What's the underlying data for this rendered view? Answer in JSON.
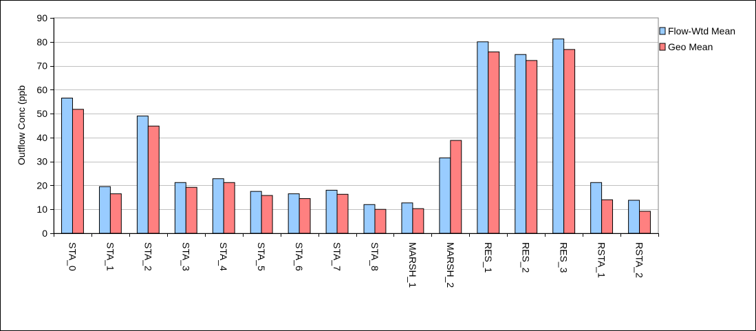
{
  "chart_data": {
    "type": "bar",
    "categories": [
      "STA_0",
      "STA_1",
      "STA_2",
      "STA_3",
      "STA_4",
      "STA_5",
      "STA_6",
      "STA_7",
      "STA_8",
      "MARSH_1",
      "MARSH_2",
      "RES_1",
      "RES_2",
      "RES_3",
      "RSTA_1",
      "RSTA_2"
    ],
    "series": [
      {
        "name": "Flow-Wtd Mean",
        "color": "#99ccff",
        "values": [
          56.5,
          19.5,
          49,
          21.2,
          22.8,
          17.5,
          16.5,
          18,
          12,
          12.7,
          31.5,
          80,
          74.7,
          81.2,
          21.2,
          13.8
        ]
      },
      {
        "name": "Geo Mean",
        "color": "#ff8080",
        "values": [
          51.8,
          16.5,
          44.8,
          19.2,
          21.2,
          15.8,
          14.5,
          16.3,
          10,
          10.3,
          38.8,
          75.8,
          72.2,
          76.8,
          14,
          9.2
        ]
      }
    ],
    "ylabel": "Outflow Conc (ppb",
    "ylim": [
      0,
      90
    ],
    "yticks": [
      0,
      10,
      20,
      30,
      40,
      50,
      60,
      70,
      80,
      90
    ],
    "grid": true,
    "legend_position": "top-right",
    "plot_background": "#ffffff",
    "gridline_color": "#c0c0c0"
  }
}
